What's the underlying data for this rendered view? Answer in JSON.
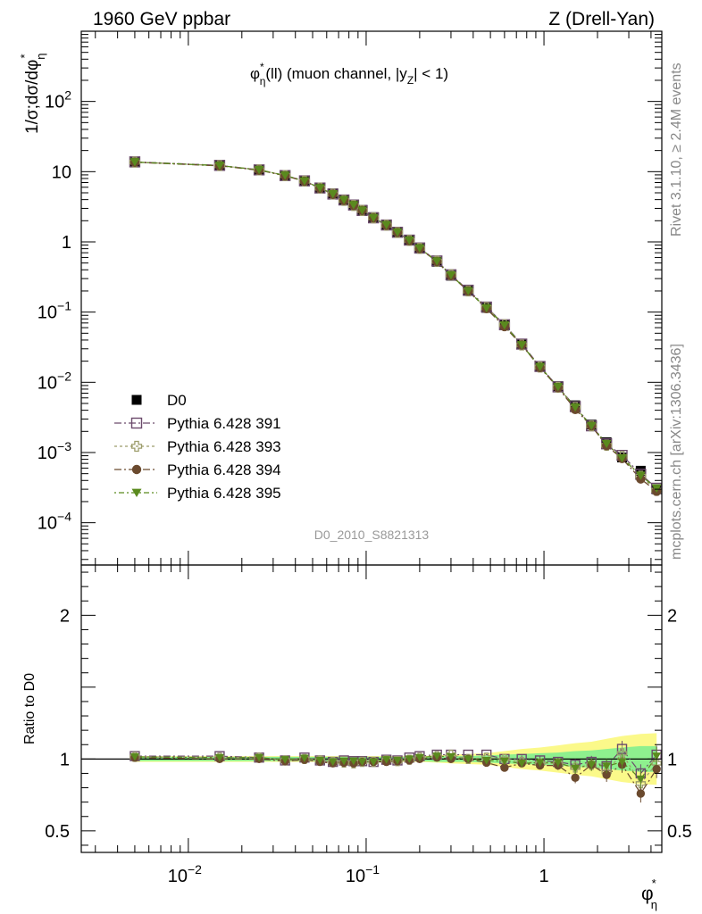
{
  "header": {
    "left": "1960 GeV ppbar",
    "right": "Z (Drell-Yan)"
  },
  "side_labels": {
    "rivet": "Rivet 3.1.10, ≥ 2.4M events",
    "mcplots": "mcplots.cern.ch [arXiv:1306.3436]"
  },
  "watermark": "D0_2010_S8821313",
  "colors": {
    "data": "#000000",
    "p391": "#6b4a6b",
    "p393": "#9c9c6a",
    "p394": "#6b4a2e",
    "p395": "#5a8a1e",
    "band_inner": "#8ef08e",
    "band_outer": "#fbf98a"
  },
  "chart_data": [
    {
      "type": "scatter",
      "title": "φη*(ll) (muon channel, |yZ| < 1)",
      "title_parts": {
        "phi": "φ",
        "sup": "*",
        "sub": "η",
        "mid": "(ll) (muon channel, |y",
        "ysub": "Z",
        "end": "| < 1)"
      },
      "ylabel": "1/σ;dσ/dφη*",
      "ylabel_parts": {
        "main": "1/σ;dσ/dφ",
        "sub": "η",
        "sup": "*"
      },
      "xscale": "log",
      "yscale": "log",
      "xlim": [
        0.0025,
        4.6
      ],
      "ylim": [
        2.5e-05,
        1000
      ],
      "yticks": [
        {
          "v": 100,
          "label": "10",
          "sup": "2"
        },
        {
          "v": 10,
          "label": "10",
          "sup": ""
        },
        {
          "v": 1,
          "label": "1",
          "sup": ""
        },
        {
          "v": 0.1,
          "label": "10",
          "sup": "−1"
        },
        {
          "v": 0.01,
          "label": "10",
          "sup": "−2"
        },
        {
          "v": 0.001,
          "label": "10",
          "sup": "−3"
        },
        {
          "v": 0.0001,
          "label": "10",
          "sup": "−4"
        }
      ],
      "x": [
        0.005,
        0.015,
        0.025,
        0.035,
        0.045,
        0.055,
        0.065,
        0.075,
        0.085,
        0.095,
        0.11,
        0.13,
        0.15,
        0.175,
        0.2,
        0.25,
        0.3,
        0.375,
        0.475,
        0.6,
        0.75,
        0.95,
        1.2,
        1.5,
        1.85,
        2.25,
        2.75,
        3.5,
        4.3
      ],
      "series": [
        {
          "name": "D0",
          "key": "p0",
          "marker": "square-filled",
          "values": [
            13.5,
            12.1,
            10.5,
            8.9,
            7.3,
            5.9,
            4.9,
            4.0,
            3.4,
            2.85,
            2.25,
            1.75,
            1.38,
            1.05,
            0.8,
            0.52,
            0.33,
            0.2,
            0.115,
            0.066,
            0.035,
            0.017,
            0.0088,
            0.0047,
            0.0025,
            0.0014,
            0.00085,
            0.00055,
            0.0003
          ]
        },
        {
          "name": "Pythia 6.428 391",
          "key": "p391",
          "marker": "square-open",
          "line": "8 3 2 3",
          "values": [
            13.8,
            12.3,
            10.6,
            8.8,
            7.4,
            5.85,
            4.8,
            3.95,
            3.35,
            2.8,
            2.2,
            1.74,
            1.37,
            1.06,
            0.82,
            0.535,
            0.34,
            0.205,
            0.118,
            0.066,
            0.035,
            0.0168,
            0.0086,
            0.0045,
            0.0024,
            0.00133,
            0.00091,
            0.00049,
            0.00031
          ]
        },
        {
          "name": "Pythia 6.428 393",
          "key": "p393",
          "marker": "cross-open",
          "line": "3 3",
          "values": [
            13.7,
            12.2,
            10.6,
            8.8,
            7.35,
            5.85,
            4.8,
            3.9,
            3.3,
            2.8,
            2.2,
            1.73,
            1.36,
            1.05,
            0.81,
            0.53,
            0.34,
            0.2,
            0.116,
            0.066,
            0.034,
            0.0165,
            0.0085,
            0.0044,
            0.0024,
            0.00127,
            0.00088,
            0.00046,
            0.00029
          ]
        },
        {
          "name": "Pythia 6.428 394",
          "key": "p394",
          "marker": "circle-filled",
          "line": "8 3 2 3",
          "values": [
            13.6,
            12.1,
            10.5,
            8.75,
            7.3,
            5.8,
            4.75,
            3.9,
            3.3,
            2.8,
            2.2,
            1.72,
            1.36,
            1.04,
            0.8,
            0.525,
            0.33,
            0.2,
            0.112,
            0.062,
            0.034,
            0.0162,
            0.0084,
            0.0041,
            0.0024,
            0.00125,
            0.00082,
            0.00042,
            0.00028
          ]
        },
        {
          "name": "Pythia 6.428 395",
          "key": "p395",
          "marker": "triangle-down",
          "line": "2 3 6 3",
          "values": [
            13.7,
            12.2,
            10.6,
            8.85,
            7.35,
            5.85,
            4.8,
            3.95,
            3.35,
            2.8,
            2.2,
            1.74,
            1.37,
            1.05,
            0.81,
            0.53,
            0.335,
            0.2,
            0.114,
            0.065,
            0.034,
            0.0166,
            0.0086,
            0.0044,
            0.0024,
            0.00133,
            0.00083,
            0.00047,
            0.00031
          ]
        }
      ]
    },
    {
      "type": "scatter",
      "ylabel": "Ratio to D0",
      "xlabel": "φη*",
      "xlabel_parts": {
        "main": "φ",
        "sub": "η",
        "sup": "*"
      },
      "xscale": "log",
      "xlim": [
        0.0025,
        4.6
      ],
      "ylim": [
        0.35,
        2.35
      ],
      "yticks": [
        {
          "v": 2,
          "label": "2"
        },
        {
          "v": 1,
          "label": "1"
        },
        {
          "v": 0.5,
          "label": "0.5"
        }
      ],
      "xticks": [
        {
          "v": 0.01,
          "label": "10",
          "sup": "−2"
        },
        {
          "v": 0.1,
          "label": "10",
          "sup": "−1"
        },
        {
          "v": 1,
          "label": "1",
          "sup": ""
        }
      ],
      "band_inner": [
        0.015,
        0.015,
        0.015,
        0.015,
        0.015,
        0.015,
        0.015,
        0.015,
        0.015,
        0.015,
        0.015,
        0.015,
        0.015,
        0.015,
        0.015,
        0.02,
        0.02,
        0.02,
        0.025,
        0.03,
        0.035,
        0.04,
        0.045,
        0.055,
        0.06,
        0.07,
        0.08,
        0.09,
        0.09
      ],
      "band_outer": [
        0.02,
        0.02,
        0.02,
        0.02,
        0.02,
        0.02,
        0.02,
        0.02,
        0.02,
        0.02,
        0.02,
        0.02,
        0.02,
        0.02,
        0.02,
        0.025,
        0.03,
        0.035,
        0.04,
        0.055,
        0.07,
        0.08,
        0.095,
        0.11,
        0.12,
        0.14,
        0.16,
        0.175,
        0.18
      ],
      "series": [
        {
          "name": "Pythia 6.428 391",
          "key": "p391",
          "marker": "square-open",
          "line": "8 3 2 3",
          "values": [
            1.02,
            1.02,
            1.01,
            0.99,
            1.01,
            0.99,
            0.98,
            0.99,
            0.985,
            0.985,
            0.98,
            0.995,
            0.99,
            1.01,
            1.02,
            1.03,
            1.03,
            1.03,
            1.03,
            1.0,
            1.0,
            0.99,
            0.98,
            0.96,
            0.98,
            0.95,
            1.07,
            0.9,
            1.03
          ]
        },
        {
          "name": "Pythia 6.428 393",
          "key": "p393",
          "marker": "cross-open",
          "line": "3 3",
          "values": [
            1.015,
            1.01,
            1.01,
            0.99,
            1.0,
            0.99,
            0.98,
            0.975,
            0.97,
            0.98,
            0.98,
            0.99,
            0.985,
            0.995,
            1.01,
            1.02,
            1.03,
            1.0,
            1.01,
            1.0,
            0.98,
            0.97,
            0.97,
            0.94,
            0.96,
            0.91,
            1.04,
            0.83,
            0.97
          ]
        },
        {
          "name": "Pythia 6.428 394",
          "key": "p394",
          "marker": "circle-filled",
          "line": "8 3 2 3",
          "values": [
            1.01,
            1.0,
            1.0,
            0.985,
            0.995,
            0.98,
            0.97,
            0.975,
            0.97,
            0.98,
            0.98,
            0.98,
            0.985,
            0.99,
            1.0,
            1.01,
            1.0,
            1.0,
            0.975,
            0.94,
            0.97,
            0.955,
            0.955,
            0.87,
            0.96,
            0.89,
            0.96,
            0.76,
            0.93
          ]
        },
        {
          "name": "Pythia 6.428 395",
          "key": "p395",
          "marker": "triangle-down",
          "line": "2 3 6 3",
          "values": [
            1.015,
            1.01,
            1.01,
            0.995,
            1.005,
            0.99,
            0.98,
            0.985,
            0.985,
            0.98,
            0.98,
            0.995,
            0.99,
            1.0,
            1.01,
            1.02,
            1.015,
            1.0,
            0.99,
            0.985,
            0.97,
            0.975,
            0.975,
            0.935,
            0.96,
            0.95,
            0.98,
            0.86,
            1.02
          ]
        }
      ]
    }
  ]
}
